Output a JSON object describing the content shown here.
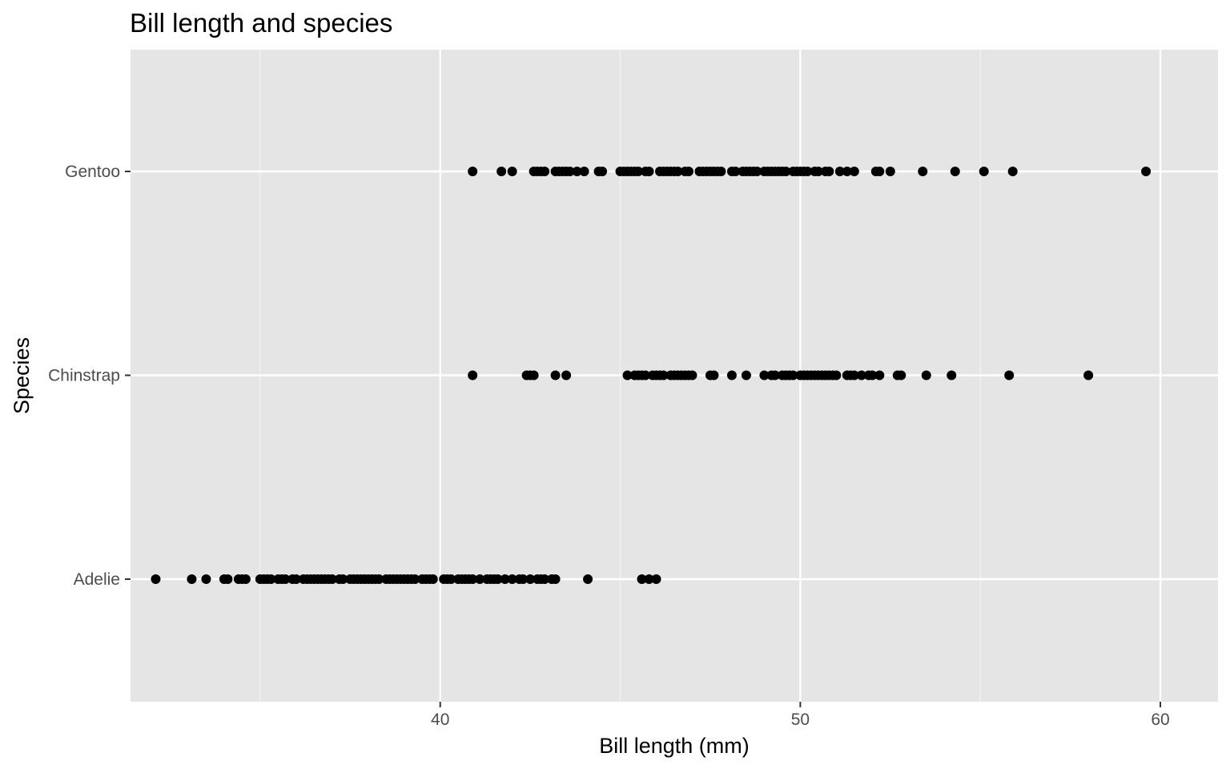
{
  "chart_data": {
    "type": "scatter",
    "title": "Bill length and species",
    "xlabel": "Bill length (mm)",
    "ylabel": "Species",
    "xlim": [
      31.4,
      61.6
    ],
    "x_ticks": [
      40,
      50,
      60
    ],
    "categories": [
      "Adelie",
      "Chinstrap",
      "Gentoo"
    ],
    "grid": true,
    "legend": "none",
    "series": [
      {
        "category": "Adelie",
        "values": [
          32.1,
          33.1,
          33.5,
          34.0,
          34.1,
          34.4,
          34.5,
          34.6,
          35.0,
          35.1,
          35.2,
          35.3,
          35.5,
          35.6,
          35.7,
          35.9,
          36.0,
          36.2,
          36.3,
          36.4,
          36.5,
          36.6,
          36.7,
          36.8,
          36.9,
          37.0,
          37.2,
          37.3,
          37.5,
          37.6,
          37.7,
          37.8,
          37.9,
          38.0,
          38.1,
          38.2,
          38.3,
          38.5,
          38.6,
          38.7,
          38.8,
          38.9,
          39.0,
          39.1,
          39.2,
          39.3,
          39.5,
          39.6,
          39.7,
          39.8,
          40.1,
          40.2,
          40.3,
          40.5,
          40.6,
          40.7,
          40.8,
          40.9,
          41.1,
          41.3,
          41.4,
          41.5,
          41.6,
          41.8,
          42.0,
          42.2,
          42.3,
          42.5,
          42.7,
          42.8,
          42.9,
          43.1,
          43.2,
          44.1,
          45.6,
          45.8,
          46.0
        ]
      },
      {
        "category": "Chinstrap",
        "values": [
          40.9,
          42.4,
          42.5,
          42.6,
          43.2,
          43.5,
          45.2,
          45.4,
          45.5,
          45.6,
          45.7,
          45.9,
          46.0,
          46.1,
          46.2,
          46.4,
          46.5,
          46.6,
          46.7,
          46.8,
          46.9,
          47.0,
          47.5,
          47.6,
          48.1,
          48.5,
          49.0,
          49.2,
          49.3,
          49.5,
          49.6,
          49.7,
          49.8,
          50.0,
          50.1,
          50.2,
          50.3,
          50.4,
          50.5,
          50.6,
          50.7,
          50.8,
          50.9,
          51.0,
          51.3,
          51.4,
          51.5,
          51.7,
          51.9,
          52.0,
          52.2,
          52.7,
          52.8,
          53.5,
          54.2,
          55.8,
          58.0
        ]
      },
      {
        "category": "Gentoo",
        "values": [
          40.9,
          41.7,
          42.0,
          42.6,
          42.7,
          42.8,
          42.9,
          43.2,
          43.3,
          43.4,
          43.5,
          43.6,
          43.8,
          44.0,
          44.4,
          44.5,
          45.0,
          45.1,
          45.2,
          45.3,
          45.4,
          45.5,
          45.7,
          45.8,
          46.1,
          46.2,
          46.3,
          46.4,
          46.5,
          46.6,
          46.8,
          46.9,
          47.2,
          47.3,
          47.4,
          47.5,
          47.6,
          47.7,
          47.8,
          48.1,
          48.2,
          48.4,
          48.5,
          48.6,
          48.7,
          48.8,
          49.0,
          49.1,
          49.2,
          49.3,
          49.4,
          49.5,
          49.6,
          49.8,
          49.9,
          50.0,
          50.1,
          50.2,
          50.4,
          50.5,
          50.7,
          50.8,
          51.1,
          51.3,
          51.5,
          52.1,
          52.2,
          52.5,
          53.4,
          54.3,
          55.1,
          55.9,
          59.6
        ]
      }
    ]
  }
}
